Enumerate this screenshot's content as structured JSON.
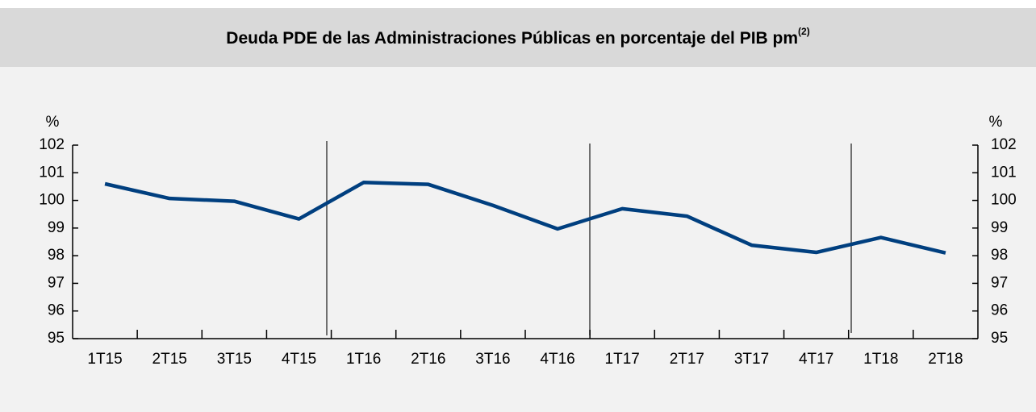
{
  "chart_data": {
    "type": "line",
    "title": "Deuda PDE de las Administraciones Públicas en porcentaje del PIB pm",
    "title_note": "(2)",
    "y_unit": "%",
    "categories": [
      "1T15",
      "2T15",
      "3T15",
      "4T15",
      "1T16",
      "2T16",
      "3T16",
      "4T16",
      "1T17",
      "2T17",
      "3T17",
      "4T17",
      "1T18",
      "2T18"
    ],
    "series": [
      {
        "color": "#003f7f",
        "values": [
          100.6,
          100.07,
          99.97,
          99.33,
          100.65,
          100.58,
          99.82,
          98.97,
          99.7,
          99.43,
          98.38,
          98.12,
          98.66,
          98.1
        ]
      }
    ],
    "ylim": [
      95,
      102
    ],
    "yticks": [
      95,
      96,
      97,
      98,
      99,
      100,
      101,
      102
    ],
    "y2lim": [
      95,
      102
    ],
    "y2ticks": [
      95,
      96,
      97,
      98,
      99,
      100,
      101,
      102
    ],
    "grid": false
  }
}
